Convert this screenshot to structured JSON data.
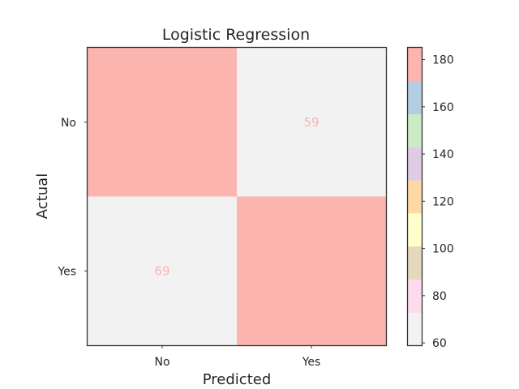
{
  "chart_data": {
    "type": "heatmap",
    "title": "Logistic Regression",
    "xlabel": "Predicted",
    "ylabel": "Actual",
    "x_categories": [
      "No",
      "Yes"
    ],
    "y_categories": [
      "No",
      "Yes"
    ],
    "values": [
      [
        185,
        59
      ],
      [
        69,
        181
      ]
    ],
    "colorbar": {
      "range": [
        59,
        185
      ],
      "ticks": [
        60,
        80,
        100,
        120,
        140,
        160,
        180
      ],
      "colormap": [
        "#f2f2f2",
        "#fddaec",
        "#e5d8bd",
        "#ffffcc",
        "#fed9a6",
        "#decbe4",
        "#ccebc5",
        "#b3cde3",
        "#fbb4ae"
      ]
    },
    "cell_text_color": "#fbb4ae",
    "grid": false
  }
}
